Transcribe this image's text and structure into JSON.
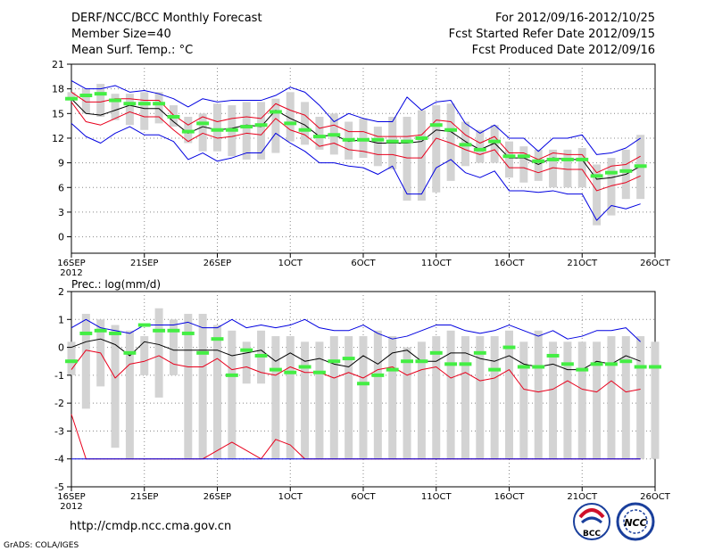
{
  "header": {
    "title_left": "DERF/NCC/BCC Monthly Forecast",
    "member_size": "Member Size=40",
    "var_label": "Mean Surf. Temp.: °C",
    "for_range": "For 2012/09/16-2012/10/25",
    "started": "Fcst Started Refer Date 2012/09/15",
    "produced": "Fcst Produced Date 2012/09/16"
  },
  "footer": {
    "url": "http://cmdp.ncc.cma.gov.cn",
    "grads": "GrADS: COLA/IGES",
    "logo_bcc_text": "BCC",
    "logo_ncc_text": "NCC"
  },
  "colors": {
    "mean": "#000000",
    "red": "#e8001c",
    "blue": "#0000e0",
    "green": "#44ee44",
    "bar": "#d3d3d3",
    "grid": "#888888"
  },
  "chart_data": [
    {
      "type": "line",
      "title": "Mean Surf. Temp.: °C",
      "ylim": [
        -2,
        21
      ],
      "yticks": [
        0,
        3,
        6,
        9,
        12,
        15,
        18,
        21
      ],
      "xlim": [
        0,
        40
      ],
      "xticks": [
        {
          "day": 0,
          "label": "16SEP",
          "sub": "2012"
        },
        {
          "day": 5,
          "label": "21SEP"
        },
        {
          "day": 10,
          "label": "26SEP"
        },
        {
          "day": 15,
          "label": "1OCT"
        },
        {
          "day": 20,
          "label": "6OCT"
        },
        {
          "day": 25,
          "label": "11OCT"
        },
        {
          "day": 30,
          "label": "16OCT"
        },
        {
          "day": 35,
          "label": "21OCT"
        },
        {
          "day": 40,
          "label": "26OCT"
        }
      ],
      "bars_low": [
        16.6,
        15.0,
        14.6,
        14.2,
        13.6,
        13.0,
        13.8,
        13.4,
        11.4,
        10.4,
        10.4,
        9.8,
        9.4,
        9.4,
        10.2,
        11.6,
        11.2,
        10.6,
        10.0,
        9.4,
        9.6,
        8.6,
        8.2,
        4.4,
        4.4,
        5.4,
        6.8,
        8.6,
        9.0,
        9.0,
        7.2,
        6.6,
        6.8,
        6.0,
        6.0,
        6.0,
        1.4,
        2.6,
        4.6,
        4.6
      ],
      "bars_high": [
        17.6,
        18.0,
        18.6,
        17.4,
        17.4,
        17.6,
        17.6,
        16.0,
        14.6,
        15.0,
        16.2,
        16.0,
        16.4,
        16.4,
        16.8,
        17.6,
        16.4,
        14.6,
        15.0,
        14.0,
        14.4,
        13.4,
        14.6,
        14.6,
        15.4,
        16.0,
        16.2,
        14.0,
        13.0,
        13.6,
        11.6,
        11.0,
        10.6,
        10.6,
        10.6,
        10.8,
        8.8,
        9.6,
        10.6,
        12.4
      ],
      "green": [
        16.8,
        17.2,
        17.4,
        16.6,
        16.2,
        16.2,
        16.2,
        14.6,
        12.8,
        13.8,
        13.0,
        13.0,
        13.4,
        13.6,
        15.2,
        13.8,
        13.0,
        12.2,
        12.4,
        11.8,
        11.8,
        11.8,
        11.6,
        11.6,
        12.0,
        13.6,
        13.0,
        11.2,
        10.6,
        11.6,
        9.8,
        9.8,
        9.2,
        9.4,
        9.4,
        9.4,
        7.4,
        7.8,
        8.0,
        8.6
      ],
      "series": [
        {
          "name": "blue_upper",
          "color": "#0000e0",
          "values": [
            19.0,
            18.0,
            18.0,
            18.4,
            17.6,
            17.8,
            17.4,
            16.8,
            15.8,
            16.8,
            16.4,
            16.6,
            16.6,
            16.6,
            17.2,
            18.2,
            17.6,
            16.0,
            14.0,
            15.0,
            14.4,
            14.0,
            14.0,
            17.0,
            15.4,
            16.4,
            16.6,
            13.8,
            12.6,
            13.6,
            12.0,
            12.0,
            10.4,
            12.0,
            12.0,
            12.4,
            10.0,
            10.2,
            10.8,
            12.0
          ]
        },
        {
          "name": "red_upper",
          "color": "#e8001c",
          "values": [
            17.6,
            16.4,
            16.4,
            16.8,
            16.8,
            16.6,
            16.6,
            14.8,
            13.6,
            14.6,
            14.0,
            14.4,
            14.6,
            14.4,
            16.2,
            15.4,
            14.8,
            13.2,
            13.6,
            12.8,
            12.8,
            12.2,
            12.2,
            12.2,
            12.4,
            14.2,
            14.0,
            12.4,
            11.4,
            12.2,
            10.2,
            10.2,
            9.4,
            10.2,
            10.0,
            10.0,
            7.8,
            8.6,
            8.8,
            9.8
          ]
        },
        {
          "name": "mean",
          "color": "#000000",
          "values": [
            16.8,
            15.0,
            14.8,
            15.4,
            16.0,
            15.6,
            15.6,
            14.0,
            12.6,
            13.4,
            13.0,
            13.2,
            13.6,
            13.4,
            15.4,
            14.4,
            13.6,
            12.2,
            12.4,
            11.6,
            11.8,
            11.4,
            11.4,
            11.4,
            11.6,
            13.0,
            12.8,
            11.6,
            10.6,
            11.4,
            9.6,
            9.6,
            8.8,
            9.6,
            9.4,
            9.4,
            7.0,
            7.2,
            7.6,
            8.6
          ]
        },
        {
          "name": "red_lower",
          "color": "#e8001c",
          "values": [
            16.4,
            14.0,
            13.6,
            14.4,
            15.2,
            14.6,
            14.6,
            13.0,
            11.6,
            12.6,
            12.0,
            12.2,
            12.6,
            12.4,
            14.4,
            13.0,
            12.4,
            11.0,
            11.4,
            10.6,
            10.4,
            10.0,
            10.0,
            9.6,
            9.6,
            12.0,
            11.4,
            10.6,
            10.0,
            10.6,
            8.4,
            8.4,
            7.8,
            8.4,
            8.2,
            8.2,
            5.6,
            6.2,
            6.6,
            7.4
          ]
        },
        {
          "name": "blue_lower",
          "color": "#0000e0",
          "values": [
            13.8,
            12.2,
            11.4,
            12.6,
            13.4,
            12.4,
            12.4,
            11.6,
            9.4,
            10.2,
            9.2,
            9.6,
            10.2,
            10.2,
            12.6,
            11.4,
            10.4,
            9.0,
            9.0,
            8.6,
            8.4,
            7.6,
            8.6,
            5.2,
            5.2,
            8.4,
            9.4,
            7.8,
            7.2,
            8.0,
            5.6,
            5.6,
            5.4,
            5.6,
            5.2,
            5.2,
            2.0,
            3.8,
            3.4,
            4.0
          ]
        }
      ]
    },
    {
      "type": "line",
      "title": "Prec.: log(mm/d)",
      "ylim": [
        -5,
        2
      ],
      "yticks": [
        -5,
        -4,
        -3,
        -2,
        -1,
        0,
        1,
        2
      ],
      "xlim": [
        0,
        40
      ],
      "xticks": [
        {
          "day": 0,
          "label": "16SEP",
          "sub": "2012"
        },
        {
          "day": 5,
          "label": "21SEP"
        },
        {
          "day": 10,
          "label": "26SEP"
        },
        {
          "day": 15,
          "label": "1OCT"
        },
        {
          "day": 20,
          "label": "6OCT"
        },
        {
          "day": 25,
          "label": "11OCT"
        },
        {
          "day": 30,
          "label": "16OCT"
        },
        {
          "day": 35,
          "label": "21OCT"
        },
        {
          "day": 40,
          "label": "26OCT"
        }
      ],
      "bars_low": [
        -1.0,
        -2.2,
        -1.4,
        -3.6,
        -4.0,
        -1.0,
        -1.8,
        -1.0,
        -4.0,
        -4.0,
        -4.0,
        -4.0,
        -1.3,
        -1.3,
        -4.0,
        -4.0,
        -4.0,
        -4.0,
        -4.0,
        -4.0,
        -4.0,
        -4.0,
        -4.0,
        -4.0,
        -4.0,
        -4.0,
        -4.0,
        -4.0,
        -4.0,
        -4.0,
        -4.0,
        -4.0,
        -4.0,
        -4.0,
        -4.0,
        -4.0,
        -4.0,
        -4.0,
        -4.0,
        -4.0,
        -4.0
      ],
      "bars_high": [
        0.2,
        1.2,
        1.0,
        0.8,
        0.6,
        0.4,
        1.4,
        1.0,
        1.2,
        1.2,
        0.8,
        0.6,
        0.2,
        0.6,
        0.4,
        0.4,
        0.2,
        0.2,
        0.4,
        0.4,
        0.4,
        0.6,
        0.4,
        0.0,
        0.2,
        0.4,
        0.6,
        0.4,
        0.4,
        0.4,
        0.6,
        0.2,
        0.6,
        0.2,
        0.2,
        0.2,
        0.2,
        0.4,
        0.4,
        0.4,
        0.2
      ],
      "green": [
        -0.5,
        0.5,
        0.6,
        0.5,
        -0.2,
        0.8,
        0.6,
        0.6,
        0.5,
        -0.2,
        0.3,
        -1.0,
        -0.1,
        -0.3,
        -0.8,
        -0.9,
        -0.7,
        -0.9,
        -0.5,
        -0.4,
        -1.3,
        -1.0,
        -0.8,
        -0.5,
        -0.5,
        -0.2,
        -0.6,
        -0.6,
        -0.2,
        -0.8,
        0.0,
        -0.7,
        -0.7,
        -0.3,
        -0.6,
        -0.8,
        -0.6,
        -0.6,
        -0.5,
        -0.7,
        -0.7
      ],
      "series": [
        {
          "name": "blue_upper",
          "color": "#0000e0",
          "values": [
            0.7,
            1.0,
            0.7,
            0.6,
            0.5,
            0.8,
            0.8,
            0.8,
            0.9,
            0.7,
            0.7,
            1.0,
            0.7,
            0.8,
            0.7,
            0.8,
            1.0,
            0.7,
            0.6,
            0.6,
            0.8,
            0.5,
            0.3,
            0.4,
            0.6,
            0.8,
            0.8,
            0.6,
            0.5,
            0.6,
            0.8,
            0.6,
            0.4,
            0.6,
            0.3,
            0.4,
            0.6,
            0.6,
            0.7,
            0.2
          ]
        },
        {
          "name": "mean",
          "color": "#000000",
          "values": [
            0.0,
            0.2,
            0.3,
            0.1,
            -0.3,
            0.2,
            0.1,
            -0.1,
            -0.1,
            -0.1,
            -0.1,
            -0.3,
            -0.2,
            -0.1,
            -0.5,
            -0.2,
            -0.5,
            -0.4,
            -0.6,
            -0.7,
            -0.3,
            -0.6,
            -0.2,
            -0.1,
            -0.5,
            -0.5,
            -0.2,
            -0.2,
            -0.4,
            -0.5,
            -0.3,
            -0.6,
            -0.7,
            -0.6,
            -0.8,
            -0.8,
            -0.5,
            -0.6,
            -0.3,
            -0.5
          ]
        },
        {
          "name": "red_upper",
          "color": "#e8001c",
          "values": [
            -0.8,
            -0.1,
            -0.2,
            -1.1,
            -0.6,
            -0.5,
            -0.3,
            -0.6,
            -0.7,
            -0.7,
            -0.4,
            -0.8,
            -0.7,
            -0.9,
            -1.0,
            -0.7,
            -0.9,
            -0.9,
            -1.1,
            -0.9,
            -1.1,
            -0.8,
            -0.7,
            -1.0,
            -0.8,
            -0.7,
            -1.1,
            -0.9,
            -1.2,
            -1.1,
            -0.8,
            -1.5,
            -1.6,
            -1.5,
            -1.2,
            -1.5,
            -1.6,
            -1.2,
            -1.6,
            -1.5
          ]
        },
        {
          "name": "red_lower",
          "color": "#e8001c",
          "values": [
            -2.4,
            -4.0,
            -4.0,
            -4.0,
            -4.0,
            -4.0,
            -4.0,
            -4.0,
            -4.0,
            -4.0,
            -3.7,
            -3.4,
            -3.7,
            -4.0,
            -3.3,
            -3.5,
            -4.0,
            -4.0,
            -4.0,
            -4.0,
            -4.0,
            -4.0,
            -4.0,
            -4.0,
            -4.0,
            -4.0,
            -4.0,
            -4.0,
            -4.0,
            -4.0,
            -4.0,
            -4.0,
            -4.0,
            -4.0,
            -4.0,
            -4.0,
            -4.0,
            -4.0,
            -4.0,
            -4.0
          ]
        },
        {
          "name": "blue_lower",
          "color": "#0000e0",
          "values": [
            -4.0,
            -4.0,
            -4.0,
            -4.0,
            -4.0,
            -4.0,
            -4.0,
            -4.0,
            -4.0,
            -4.0,
            -4.0,
            -4.0,
            -4.0,
            -4.0,
            -4.0,
            -4.0,
            -4.0,
            -4.0,
            -4.0,
            -4.0,
            -4.0,
            -4.0,
            -4.0,
            -4.0,
            -4.0,
            -4.0,
            -4.0,
            -4.0,
            -4.0,
            -4.0,
            -4.0,
            -4.0,
            -4.0,
            -4.0,
            -4.0,
            -4.0,
            -4.0,
            -4.0,
            -4.0,
            -4.0
          ]
        }
      ]
    }
  ]
}
